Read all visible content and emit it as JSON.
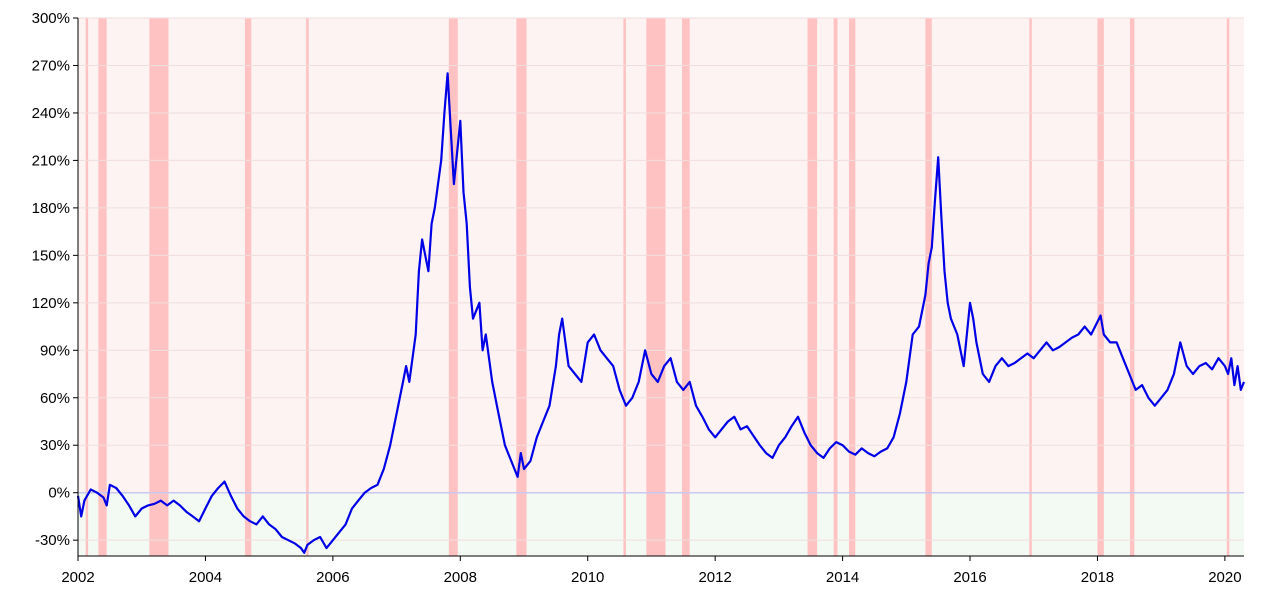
{
  "chart_data": {
    "type": "line",
    "title": "",
    "xlabel": "",
    "ylabel": "",
    "xlim": [
      2002.0,
      2020.3
    ],
    "ylim": [
      -40,
      300
    ],
    "y_tick_values": [
      -30,
      0,
      30,
      60,
      90,
      120,
      150,
      180,
      210,
      240,
      270,
      300
    ],
    "y_tick_labels": [
      "-30%",
      "0%",
      "30%",
      "60%",
      "90%",
      "120%",
      "150%",
      "180%",
      "210%",
      "240%",
      "270%",
      "300%"
    ],
    "x_tick_values": [
      2002,
      2004,
      2006,
      2008,
      2010,
      2012,
      2014,
      2016,
      2018,
      2020
    ],
    "x_tick_labels": [
      "2002",
      "2004",
      "2006",
      "2008",
      "2010",
      "2012",
      "2014",
      "2016",
      "2018",
      "2020"
    ],
    "grid": "horizontal",
    "colors": {
      "line": "#0000e6",
      "highlight_band": "#ffc2c2",
      "positive_region": "#fdf3f3",
      "negative_region": "#f3faf3",
      "zero_line": "#c8c8f0"
    },
    "highlight_bands": [
      [
        2002.12,
        2002.15
      ],
      [
        2002.32,
        2002.45
      ],
      [
        2003.12,
        2003.42
      ],
      [
        2004.62,
        2004.72
      ],
      [
        2005.58,
        2005.62
      ],
      [
        2007.82,
        2007.96
      ],
      [
        2008.88,
        2009.04
      ],
      [
        2010.56,
        2010.59
      ],
      [
        2010.92,
        2011.22
      ],
      [
        2011.48,
        2011.6
      ],
      [
        2013.45,
        2013.6
      ],
      [
        2013.86,
        2013.92
      ],
      [
        2014.1,
        2014.2
      ],
      [
        2015.3,
        2015.4
      ],
      [
        2016.93,
        2016.97
      ],
      [
        2018.0,
        2018.1
      ],
      [
        2018.51,
        2018.58
      ],
      [
        2020.03,
        2020.07
      ]
    ],
    "series": [
      {
        "x": [
          2002.0,
          2002.05,
          2002.1,
          2002.2,
          2002.3,
          2002.4,
          2002.45,
          2002.5,
          2002.6,
          2002.7,
          2002.8,
          2002.9,
          2003.0,
          2003.1,
          2003.2,
          2003.3,
          2003.4,
          2003.5,
          2003.6,
          2003.7,
          2003.8,
          2003.9,
          2004.0,
          2004.1,
          2004.2,
          2004.3,
          2004.4,
          2004.5,
          2004.6,
          2004.7,
          2004.8,
          2004.9,
          2005.0,
          2005.1,
          2005.2,
          2005.3,
          2005.4,
          2005.5,
          2005.55,
          2005.6,
          2005.7,
          2005.8,
          2005.9,
          2006.0,
          2006.1,
          2006.2,
          2006.3,
          2006.4,
          2006.5,
          2006.6,
          2006.7,
          2006.8,
          2006.9,
          2007.0,
          2007.1,
          2007.15,
          2007.2,
          2007.3,
          2007.35,
          2007.4,
          2007.5,
          2007.55,
          2007.6,
          2007.7,
          2007.75,
          2007.8,
          2007.85,
          2007.9,
          2007.95,
          2008.0,
          2008.05,
          2008.1,
          2008.15,
          2008.2,
          2008.3,
          2008.35,
          2008.4,
          2008.5,
          2008.6,
          2008.7,
          2008.8,
          2008.9,
          2008.95,
          2009.0,
          2009.1,
          2009.2,
          2009.3,
          2009.4,
          2009.5,
          2009.55,
          2009.6,
          2009.7,
          2009.8,
          2009.9,
          2010.0,
          2010.1,
          2010.2,
          2010.3,
          2010.4,
          2010.5,
          2010.6,
          2010.7,
          2010.8,
          2010.85,
          2010.9,
          2011.0,
          2011.1,
          2011.2,
          2011.3,
          2011.4,
          2011.5,
          2011.6,
          2011.7,
          2011.8,
          2011.9,
          2012.0,
          2012.1,
          2012.2,
          2012.3,
          2012.4,
          2012.5,
          2012.6,
          2012.7,
          2012.8,
          2012.9,
          2013.0,
          2013.1,
          2013.2,
          2013.3,
          2013.4,
          2013.5,
          2013.6,
          2013.7,
          2013.8,
          2013.9,
          2014.0,
          2014.1,
          2014.2,
          2014.3,
          2014.4,
          2014.5,
          2014.6,
          2014.7,
          2014.8,
          2014.9,
          2015.0,
          2015.1,
          2015.2,
          2015.3,
          2015.35,
          2015.4,
          2015.45,
          2015.5,
          2015.55,
          2015.6,
          2015.65,
          2015.7,
          2015.8,
          2015.9,
          2016.0,
          2016.05,
          2016.1,
          2016.2,
          2016.3,
          2016.4,
          2016.5,
          2016.6,
          2016.7,
          2016.8,
          2016.9,
          2017.0,
          2017.1,
          2017.2,
          2017.3,
          2017.4,
          2017.5,
          2017.6,
          2017.7,
          2017.8,
          2017.9,
          2018.0,
          2018.05,
          2018.1,
          2018.2,
          2018.3,
          2018.4,
          2018.5,
          2018.6,
          2018.7,
          2018.8,
          2018.9,
          2019.0,
          2019.1,
          2019.2,
          2019.3,
          2019.4,
          2019.5,
          2019.6,
          2019.7,
          2019.8,
          2019.9,
          2020.0,
          2020.05,
          2020.1,
          2020.15,
          2020.2,
          2020.25,
          2020.3
        ],
        "y": [
          -2,
          -15,
          -5,
          2,
          0,
          -3,
          -8,
          5,
          3,
          -2,
          -8,
          -15,
          -10,
          -8,
          -7,
          -5,
          -8,
          -5,
          -8,
          -12,
          -15,
          -18,
          -10,
          -2,
          3,
          7,
          -2,
          -10,
          -15,
          -18,
          -20,
          -15,
          -20,
          -23,
          -28,
          -30,
          -32,
          -35,
          -38,
          -33,
          -30,
          -28,
          -35,
          -30,
          -25,
          -20,
          -10,
          -5,
          0,
          3,
          5,
          15,
          30,
          50,
          70,
          80,
          70,
          100,
          140,
          160,
          140,
          170,
          180,
          210,
          240,
          265,
          230,
          195,
          215,
          235,
          190,
          170,
          130,
          110,
          120,
          90,
          100,
          70,
          50,
          30,
          20,
          10,
          25,
          15,
          20,
          35,
          45,
          55,
          80,
          100,
          110,
          80,
          75,
          70,
          95,
          100,
          90,
          85,
          80,
          65,
          55,
          60,
          70,
          80,
          90,
          75,
          70,
          80,
          85,
          70,
          65,
          70,
          55,
          48,
          40,
          35,
          40,
          45,
          48,
          40,
          42,
          36,
          30,
          25,
          22,
          30,
          35,
          42,
          48,
          38,
          30,
          25,
          22,
          28,
          32,
          30,
          26,
          24,
          28,
          25,
          23,
          26,
          28,
          35,
          50,
          70,
          100,
          105,
          125,
          145,
          155,
          185,
          212,
          175,
          140,
          120,
          110,
          100,
          80,
          120,
          110,
          95,
          75,
          70,
          80,
          85,
          80,
          82,
          85,
          88,
          85,
          90,
          95,
          90,
          92,
          95,
          98,
          100,
          105,
          100,
          108,
          112,
          100,
          95,
          95,
          85,
          75,
          65,
          68,
          60,
          55,
          60,
          65,
          75,
          95,
          80,
          75,
          80,
          82,
          78,
          85,
          80,
          75,
          85,
          68,
          80,
          65,
          70
        ]
      }
    ]
  }
}
